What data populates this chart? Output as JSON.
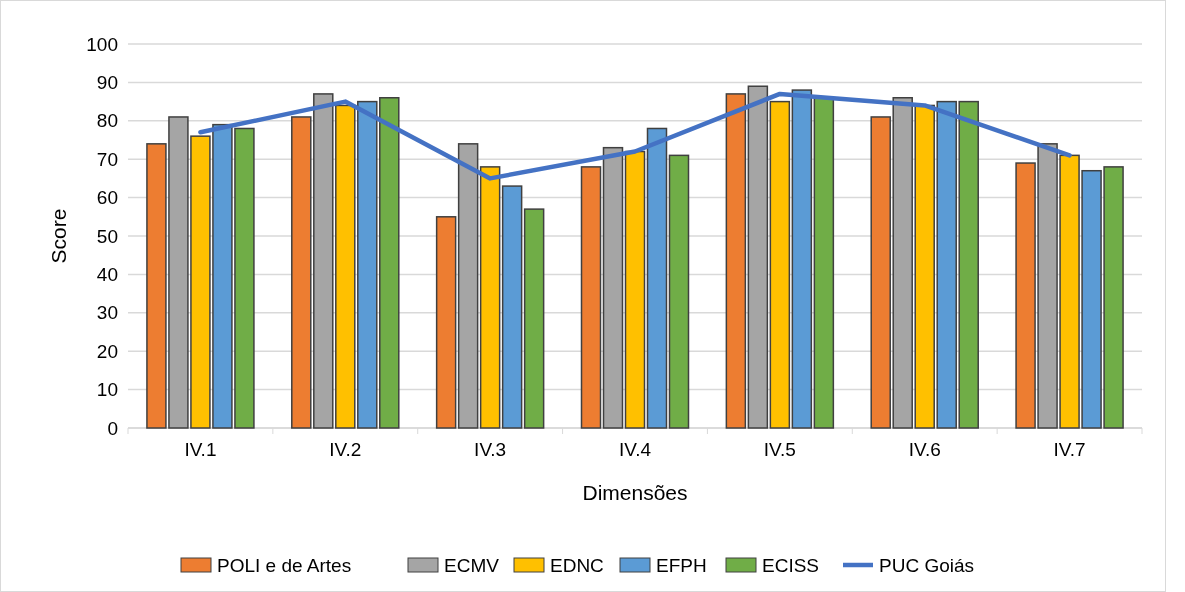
{
  "chart_data": {
    "type": "bar",
    "xlabel": "Dimensões",
    "ylabel": "Score",
    "categories": [
      "IV.1",
      "IV.2",
      "IV.3",
      "IV.4",
      "IV.5",
      "IV.6",
      "IV.7"
    ],
    "series": [
      {
        "name": "POLI e de Artes",
        "color": "#ed7d31",
        "values": [
          74,
          81,
          55,
          68,
          87,
          81,
          69
        ]
      },
      {
        "name": "ECMV",
        "color": "#a5a5a5",
        "values": [
          81,
          87,
          74,
          73,
          89,
          86,
          74
        ]
      },
      {
        "name": "EDNC",
        "color": "#ffc000",
        "values": [
          76,
          84,
          68,
          72,
          85,
          84,
          71
        ]
      },
      {
        "name": "EFPH",
        "color": "#5b9bd5",
        "values": [
          79,
          85,
          63,
          78,
          88,
          85,
          67
        ]
      },
      {
        "name": "ECISS",
        "color": "#70ad47",
        "values": [
          78,
          86,
          57,
          71,
          86,
          85,
          68
        ]
      },
      {
        "name": "PUC Goiás",
        "color": "#4472c4",
        "type": "line",
        "values": [
          77,
          85,
          65,
          72,
          87,
          84,
          71
        ]
      }
    ],
    "ylim": [
      0,
      100
    ],
    "yticks": [
      0,
      10,
      20,
      30,
      40,
      50,
      60,
      70,
      80,
      90,
      100
    ],
    "grid": "y",
    "legend": "bottom",
    "marker": "none"
  }
}
